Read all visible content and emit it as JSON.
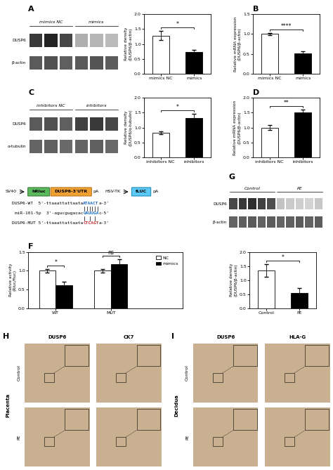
{
  "chart_data": [
    {
      "type": "blot",
      "title": "A",
      "row_labels": [
        "DUSP6",
        "β-actin"
      ],
      "series": [
        {
          "name": "mimics NC",
          "values": [
            [
              0.82,
              0.88,
              0.78
            ],
            [
              0.72,
              0.75,
              0.7
            ]
          ]
        },
        {
          "name": "mimics",
          "values": [
            [
              0.42,
              0.4,
              0.38
            ],
            [
              0.72,
              0.74,
              0.71
            ]
          ]
        }
      ]
    },
    {
      "type": "bar",
      "categories": [
        "mimics NC",
        "mimics"
      ],
      "values": [
        1.28,
        0.72
      ],
      "errors": [
        0.15,
        0.08
      ],
      "colors": [
        "white",
        "black"
      ],
      "ylabel": "Relative density\n(DUSP6/β-actin)",
      "ylim": [
        0,
        2.0
      ],
      "yticks": [
        0.0,
        0.5,
        1.0,
        1.5,
        2.0
      ],
      "significance": "*"
    },
    {
      "type": "bar",
      "title": "B",
      "categories": [
        "mimics NC",
        "mimics"
      ],
      "values": [
        1.0,
        0.52
      ],
      "errors": [
        0.03,
        0.05
      ],
      "colors": [
        "white",
        "black"
      ],
      "ylabel": "Relative mRNA expression\n(DUSP6/β-actin)",
      "ylim": [
        0,
        1.5
      ],
      "yticks": [
        0.0,
        0.5,
        1.0,
        1.5
      ],
      "significance": "****"
    },
    {
      "type": "blot",
      "title": "C",
      "row_labels": [
        "DUSP6",
        "α-tubulin"
      ],
      "series": [
        {
          "name": "inhibitors NC",
          "values": [
            [
              0.72,
              0.75,
              0.7
            ],
            [
              0.68,
              0.7,
              0.66
            ]
          ]
        },
        {
          "name": "inhibitors",
          "values": [
            [
              0.8,
              0.82,
              0.78
            ],
            [
              0.68,
              0.7,
              0.66
            ]
          ]
        }
      ]
    },
    {
      "type": "bar",
      "categories": [
        "inhibitors NC",
        "inhibitors"
      ],
      "values": [
        0.82,
        1.32
      ],
      "errors": [
        0.05,
        0.15
      ],
      "colors": [
        "white",
        "black"
      ],
      "ylabel": "Relative density\n(DUSP6/α-tubulin)",
      "ylim": [
        0,
        2.0
      ],
      "yticks": [
        0.0,
        0.5,
        1.0,
        1.5,
        2.0
      ],
      "significance": "*"
    },
    {
      "type": "bar",
      "title": "D",
      "categories": [
        "inhibitors NC",
        "inhibitors"
      ],
      "values": [
        1.0,
        1.52
      ],
      "errors": [
        0.08,
        0.08
      ],
      "colors": [
        "white",
        "black"
      ],
      "ylabel": "Relative mRNA expression\n(DUSP6/β-actin)",
      "ylim": [
        0,
        2.0
      ],
      "yticks": [
        0.0,
        0.5,
        1.0,
        1.5,
        2.0
      ],
      "significance": "**"
    },
    {
      "type": "diagram",
      "construct": [
        {
          "kind": "promoter",
          "label": "SV40"
        },
        {
          "kind": "gene",
          "label": "hRluc",
          "color": "#5cb85c",
          "edge_color": "#3d7f3d"
        },
        {
          "kind": "gene",
          "label": "DUSP6-3'UTR",
          "color": "#f0a030",
          "edge_color": "#c07820"
        },
        {
          "kind": "polyA",
          "label": "pA"
        },
        {
          "kind": "promoter",
          "label": "HSV-TK"
        },
        {
          "kind": "gene",
          "label": "fLUC",
          "color": "#5bc8f5",
          "edge_color": "#2090c0"
        },
        {
          "kind": "polyA",
          "label": "pA"
        }
      ],
      "sequences": [
        {
          "prefix": "DUSP6-WT  5'-ttaaattattaata",
          "highlight": "ATAACT",
          "suffix": "a-3'",
          "color": "#1a6ec7"
        },
        {
          "prefix": "miR-101-5p  3'-agucgugacac",
          "highlight": "UAUUGA",
          "suffix": "c-5'",
          "color": "#1a6ec7"
        },
        {
          "prefix": "DUSP6-MUT 5'-ttaaattattaata",
          "highlight": "CTCAGT",
          "suffix": "a-3'",
          "color": "#d03030"
        }
      ],
      "paired_bases": [
        [
          0,
          1,
          2,
          3,
          4,
          5
        ],
        [
          0,
          2,
          4
        ]
      ]
    },
    {
      "type": "blot",
      "title": "G",
      "row_labels": [
        "DUSP6",
        "β-actin"
      ],
      "series": [
        {
          "name": "Control",
          "values": [
            [
              0.78,
              0.82,
              0.85,
              0.8,
              0.76
            ],
            [
              0.68,
              0.7,
              0.72,
              0.69,
              0.71
            ]
          ]
        },
        {
          "name": "PE",
          "values": [
            [
              0.35,
              0.32,
              0.3,
              0.28,
              0.33
            ],
            [
              0.68,
              0.7,
              0.72,
              0.69,
              0.71
            ]
          ]
        }
      ]
    },
    {
      "type": "bar",
      "title": "F",
      "categories": [
        "WT",
        "MUT"
      ],
      "series": [
        {
          "name": "NC",
          "color": "white",
          "values": [
            1.0,
            1.0
          ],
          "errors": [
            0.05,
            0.05
          ]
        },
        {
          "name": "mimics",
          "color": "black",
          "values": [
            0.62,
            1.18
          ],
          "errors": [
            0.08,
            0.12
          ]
        }
      ],
      "ylabel": "Relative activity\n(Rluc/fluc)",
      "ylim": [
        0,
        1.5
      ],
      "yticks": [
        0.0,
        0.5,
        1.0,
        1.5
      ],
      "significance": [
        "*",
        "ns"
      ],
      "legend": "upper right"
    },
    {
      "type": "bar",
      "categories": [
        "Control",
        "PE"
      ],
      "values": [
        1.35,
        0.55
      ],
      "errors": [
        0.22,
        0.18
      ],
      "colors": [
        "white",
        "black"
      ],
      "ylabel": "Relative density\n(DUSP6/β-actin)",
      "ylim": [
        0,
        2.0
      ],
      "yticks": [
        0.0,
        0.5,
        1.0,
        1.5,
        2.0
      ],
      "significance": "*"
    },
    {
      "type": "image_grid",
      "title": "H",
      "side_label": "Placenta",
      "columns": [
        "DUSP6",
        "CK7"
      ],
      "rows": [
        "Control",
        "PE"
      ],
      "color": "#c8b090"
    },
    {
      "type": "image_grid",
      "title": "I",
      "side_label": "Decidua",
      "columns": [
        "DUSP6",
        "HLA-G"
      ],
      "rows": [
        "Control",
        "PE"
      ],
      "color": "#c8b090"
    }
  ]
}
